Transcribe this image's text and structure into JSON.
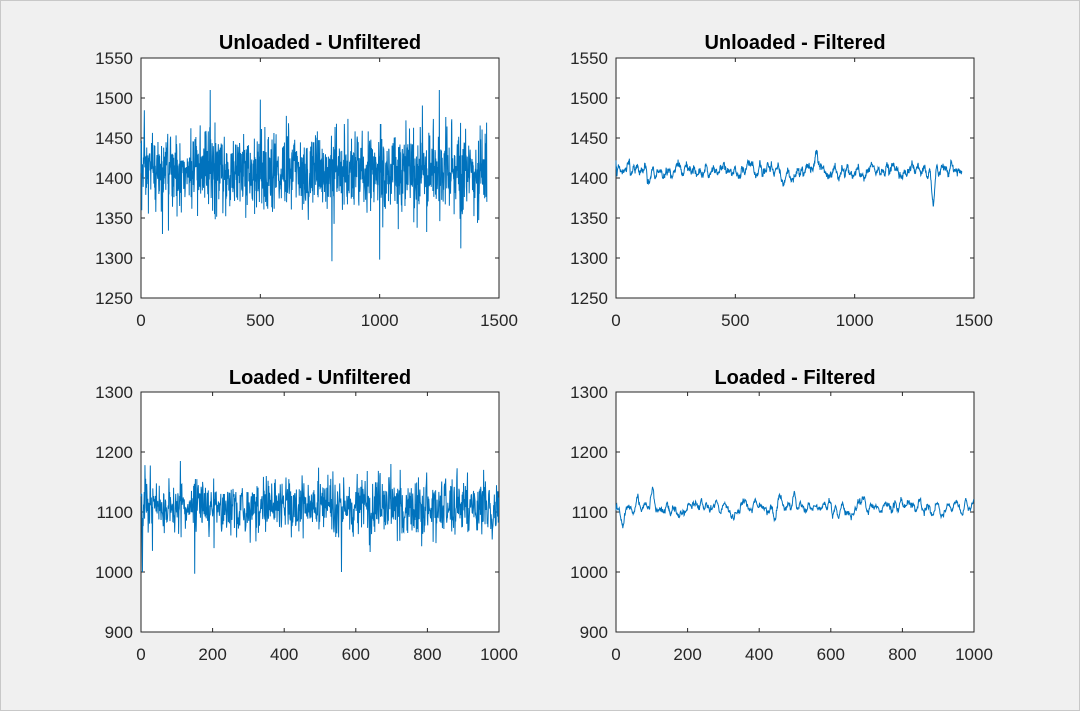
{
  "figure": {
    "background": "#f0f0f0",
    "line_color": "#0072bd"
  },
  "chart_data": [
    {
      "id": "unloaded-unfiltered",
      "type": "line",
      "title": "Unloaded - Unfiltered",
      "xlabel": "",
      "ylabel": "",
      "xlim": [
        0,
        1500
      ],
      "ylim": [
        1250,
        1550
      ],
      "xticks": [
        0,
        500,
        1000,
        1500
      ],
      "yticks": [
        1250,
        1300,
        1350,
        1400,
        1450,
        1500,
        1550
      ],
      "grid": false,
      "series": [
        {
          "color": "#0072bd",
          "n_points": 1450,
          "mean": 1408,
          "noise_sd": 25,
          "smoothing_window": 1,
          "peaks": [
            [
              290,
              1510
            ],
            [
              1250,
              1510
            ],
            [
              500,
              1498
            ],
            [
              800,
              1296
            ],
            [
              1000,
              1298
            ],
            [
              1340,
              1312
            ],
            [
              90,
              1330
            ]
          ]
        }
      ]
    },
    {
      "id": "unloaded-filtered",
      "type": "line",
      "title": "Unloaded - Filtered",
      "xlabel": "",
      "ylabel": "",
      "xlim": [
        0,
        1500
      ],
      "ylim": [
        1250,
        1550
      ],
      "xticks": [
        0,
        500,
        1000,
        1500
      ],
      "yticks": [
        1250,
        1300,
        1350,
        1400,
        1450,
        1500,
        1550
      ],
      "grid": false,
      "series": [
        {
          "color": "#0072bd",
          "n_points": 1450,
          "mean": 1408,
          "noise_sd": 22,
          "smoothing_window": 12,
          "peaks": [
            [
              0,
              1422
            ],
            [
              840,
              1435
            ],
            [
              1330,
              1365
            ]
          ]
        }
      ]
    },
    {
      "id": "loaded-unfiltered",
      "type": "line",
      "title": "Loaded - Unfiltered",
      "xlabel": "",
      "ylabel": "",
      "xlim": [
        0,
        1000
      ],
      "ylim": [
        900,
        1300
      ],
      "xticks": [
        0,
        200,
        400,
        600,
        800,
        1000
      ],
      "yticks": [
        900,
        1000,
        1100,
        1200,
        1300
      ],
      "grid": false,
      "series": [
        {
          "color": "#0072bd",
          "n_points": 1000,
          "mean": 1108,
          "noise_sd": 24,
          "smoothing_window": 1,
          "peaks": [
            [
              150,
              1190
            ],
            [
              110,
              1185
            ],
            [
              560,
              1000
            ],
            [
              150,
              997
            ],
            [
              4,
              1000
            ],
            [
              350,
              1160
            ]
          ]
        }
      ]
    },
    {
      "id": "loaded-filtered",
      "type": "line",
      "title": "Loaded - Filtered",
      "xlabel": "",
      "ylabel": "",
      "xlim": [
        0,
        1000
      ],
      "ylim": [
        900,
        1300
      ],
      "xticks": [
        0,
        200,
        400,
        600,
        800,
        1000
      ],
      "yticks": [
        900,
        1000,
        1100,
        1200,
        1300
      ],
      "grid": false,
      "series": [
        {
          "color": "#0072bd",
          "n_points": 1000,
          "mean": 1108,
          "noise_sd": 24,
          "smoothing_window": 10,
          "peaks": [
            [
              105,
              1135
            ],
            [
              20,
              1077
            ],
            [
              500,
              1128
            ]
          ]
        }
      ]
    }
  ]
}
